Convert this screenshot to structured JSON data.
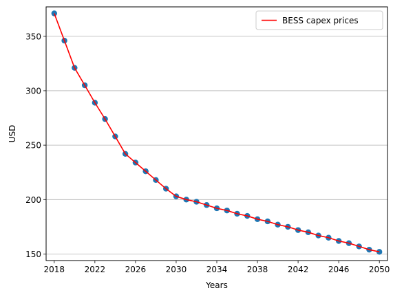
{
  "chart_data": {
    "type": "line",
    "xlabel": "Years",
    "ylabel": "USD",
    "xlim": [
      2017.2,
      2050.8
    ],
    "ylim": [
      144,
      377
    ],
    "xticks": [
      2018,
      2022,
      2026,
      2030,
      2034,
      2038,
      2042,
      2046,
      2050
    ],
    "yticks": [
      150,
      200,
      250,
      300,
      350
    ],
    "grid": "horizontal",
    "legend_position": "top-right",
    "x": [
      2018,
      2019,
      2020,
      2021,
      2022,
      2023,
      2024,
      2025,
      2026,
      2027,
      2028,
      2029,
      2030,
      2031,
      2032,
      2033,
      2034,
      2035,
      2036,
      2037,
      2038,
      2039,
      2040,
      2041,
      2042,
      2043,
      2044,
      2045,
      2046,
      2047,
      2048,
      2049,
      2050
    ],
    "series": [
      {
        "name": "BESS capex prices",
        "line_color": "#ff0000",
        "marker_color": "#1f77b4",
        "values": [
          371,
          346,
          321,
          305,
          289,
          274,
          258,
          242,
          234,
          226,
          218,
          210,
          203,
          200,
          198,
          195,
          192,
          190,
          187,
          185,
          182,
          180,
          177,
          175,
          172,
          170,
          167,
          165,
          162,
          160,
          157,
          154,
          152
        ]
      }
    ]
  }
}
